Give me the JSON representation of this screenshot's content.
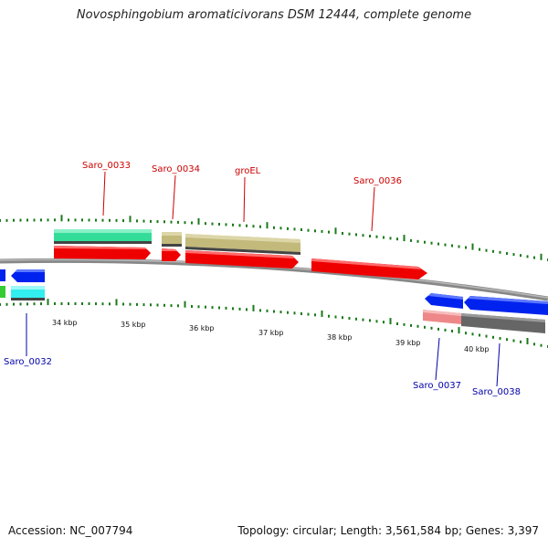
{
  "title": "Novosphingobium aromaticivorans DSM 12444, complete genome",
  "accession": "Accession: NC_007794",
  "topology": "Topology: circular; Length: 3,561,584 bp; Genes: 3,397",
  "colors": {
    "backbone": "#808080",
    "ticks": "#1a7a1a",
    "top_label": "#cc0000",
    "bottom_label": "#0000aa",
    "red_gene": "#ee0000",
    "olive_gene": "#c2b97a",
    "teal_gene": "#33dd99",
    "blue_gene": "#0022ee",
    "cyan_gene": "#33eeee",
    "green_gene": "#33cc33",
    "pink_gene": "#ee8888",
    "gray_gene": "#666666"
  },
  "scale": {
    "unit": "kbp",
    "ticks": [
      {
        "label": "34 kbp"
      },
      {
        "label": "35 kbp"
      },
      {
        "label": "36 kbp"
      },
      {
        "label": "37 kbp"
      },
      {
        "label": "38 kbp"
      },
      {
        "label": "39 kbp"
      },
      {
        "label": "40 kbp"
      }
    ]
  },
  "gene_labels_top": [
    {
      "name": "Saro_0033"
    },
    {
      "name": "Saro_0034"
    },
    {
      "name": "groEL"
    },
    {
      "name": "Saro_0036"
    }
  ],
  "gene_labels_bottom": [
    {
      "name": "Saro_0032"
    },
    {
      "name": "Saro_0037"
    },
    {
      "name": "Saro_0038"
    }
  ]
}
